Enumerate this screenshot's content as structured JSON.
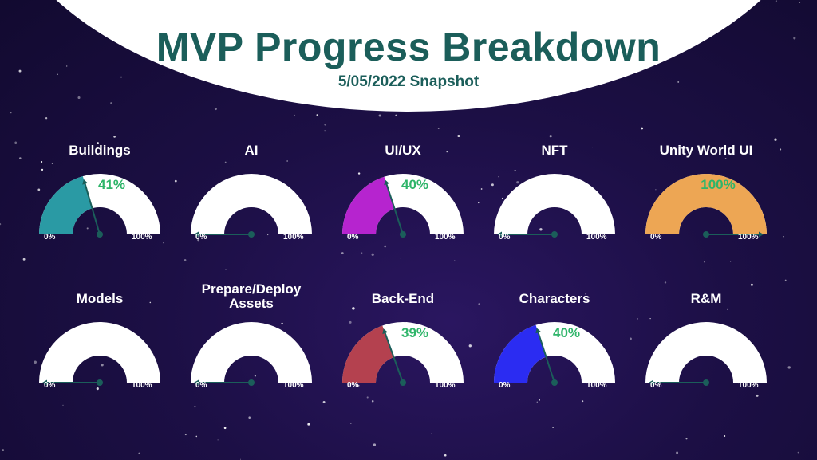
{
  "title": "MVP Progress Breakdown",
  "subtitle": "5/05/2022 Snapshot",
  "scale_min": "0%",
  "scale_max": "100%",
  "gauges": [
    {
      "label": "Buildings",
      "value": 41,
      "value_text": "41%",
      "color": "#2a9aa4"
    },
    {
      "label": "AI",
      "value": 0,
      "value_text": "",
      "color": "#2a9aa4"
    },
    {
      "label": "UI/UX",
      "value": 40,
      "value_text": "40%",
      "color": "#b624cf"
    },
    {
      "label": "NFT",
      "value": 0,
      "value_text": "",
      "color": "#2a9aa4"
    },
    {
      "label": "Unity World UI",
      "value": 100,
      "value_text": "100%",
      "color": "#eda654"
    },
    {
      "label": "Models",
      "value": 0,
      "value_text": "",
      "color": "#2a9aa4"
    },
    {
      "label": "Prepare/Deploy Assets",
      "value": 0,
      "value_text": "",
      "color": "#2a9aa4"
    },
    {
      "label": "Back-End",
      "value": 39,
      "value_text": "39%",
      "color": "#b4414f"
    },
    {
      "label": "Characters",
      "value": 40,
      "value_text": "40%",
      "color": "#2b2cf2"
    },
    {
      "label": "R&M",
      "value": 0,
      "value_text": "",
      "color": "#2a9aa4"
    }
  ],
  "colors": {
    "title": "#1b5e5a",
    "needle": "#1b5e5a",
    "percent_text": "#2fb56a"
  }
}
